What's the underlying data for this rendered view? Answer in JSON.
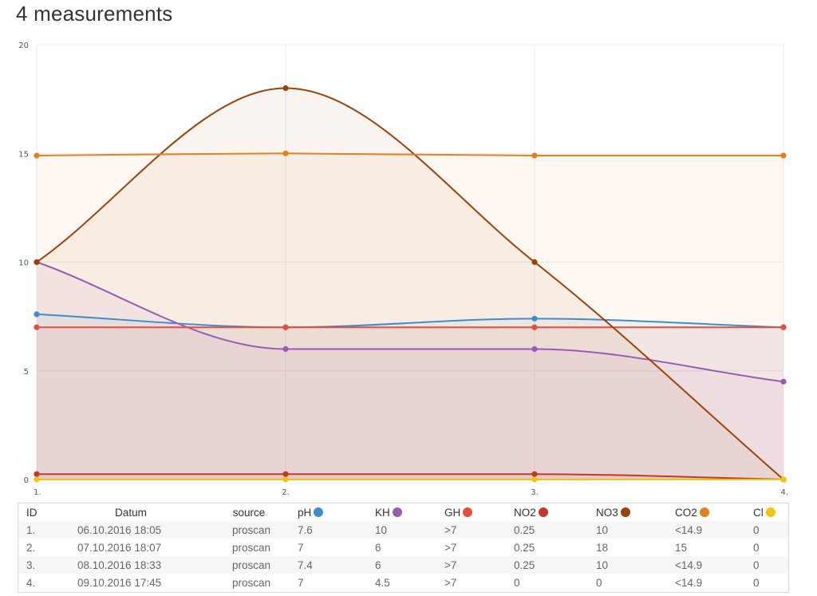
{
  "page_title": "4 measurements",
  "chart_data": {
    "type": "area",
    "categories": [
      "1.",
      "2.",
      "3.",
      "4."
    ],
    "ylim": [
      0,
      20
    ],
    "y_ticks": [
      "0",
      "5",
      "10",
      "15",
      "20"
    ],
    "grid": true,
    "smooth": true,
    "series": [
      {
        "name": "pH",
        "color": "#3b8ed0",
        "values": [
          7.6,
          7,
          7.4,
          7
        ]
      },
      {
        "name": "KH",
        "color": "#9b59b6",
        "values": [
          10,
          6,
          6,
          4.5
        ]
      },
      {
        "name": "GH",
        "color": "#e74c3c",
        "values": [
          7,
          7,
          7,
          7
        ]
      },
      {
        "name": "NO2",
        "color": "#c0392b",
        "values": [
          0.25,
          0.25,
          0.25,
          0
        ]
      },
      {
        "name": "NO3",
        "color": "#9c4208",
        "values": [
          10,
          18,
          10,
          0
        ]
      },
      {
        "name": "CO2",
        "color": "#e67e22",
        "values": [
          14.9,
          15,
          14.9,
          14.9
        ]
      },
      {
        "name": "Cl",
        "color": "#f1c40f",
        "values": [
          0,
          0,
          0,
          0
        ]
      }
    ]
  },
  "table": {
    "headers": {
      "id": "ID",
      "datum": "Datum",
      "source": "source",
      "ph": "pH",
      "kh": "KH",
      "gh": "GH",
      "no2": "NO2",
      "no3": "NO3",
      "co2": "CO2",
      "cl": "Cl"
    },
    "rows": [
      {
        "id": "1.",
        "datum": "06.10.2016 18:05",
        "source": "proscan",
        "ph": "7.6",
        "kh": "10",
        "gh": ">7",
        "no2": "0.25",
        "no3": "10",
        "co2": "<14.9",
        "cl": "0"
      },
      {
        "id": "2.",
        "datum": "07.10.2016 18:07",
        "source": "proscan",
        "ph": "7",
        "kh": "6",
        "gh": ">7",
        "no2": "0.25",
        "no3": "18",
        "co2": "15",
        "cl": "0"
      },
      {
        "id": "3.",
        "datum": "08.10.2016 18:33",
        "source": "proscan",
        "ph": "7.4",
        "kh": "6",
        "gh": ">7",
        "no2": "0.25",
        "no3": "10",
        "co2": "<14.9",
        "cl": "0"
      },
      {
        "id": "4.",
        "datum": "09.10.2016 17:45",
        "source": "proscan",
        "ph": "7",
        "kh": "4.5",
        "gh": ">7",
        "no2": "0",
        "no3": "0",
        "co2": "<14.9",
        "cl": "0"
      }
    ]
  }
}
